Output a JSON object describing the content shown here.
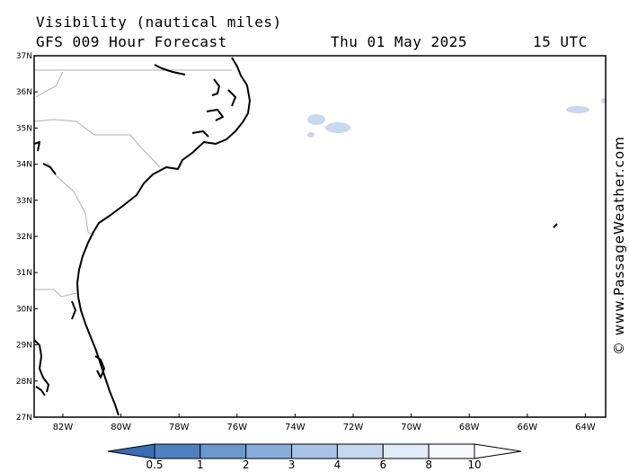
{
  "header": {
    "title": "Visibility (nautical miles)",
    "subtitle": "GFS 009 Hour Forecast",
    "date": "Thu 01 May 2025",
    "time": "15 UTC"
  },
  "map": {
    "lat_labels": [
      "37N",
      "36N",
      "35N",
      "34N",
      "33N",
      "32N",
      "31N",
      "30N",
      "29N",
      "28N",
      "27N"
    ],
    "lon_labels": [
      "82W",
      "80W",
      "78W",
      "76W",
      "74W",
      "72W",
      "70W",
      "68W",
      "66W",
      "64W"
    ],
    "land_color": "#000000",
    "border_color": "#b0b0b0",
    "low_visibility_color": "#c8d8ee"
  },
  "colorbar": {
    "labels": [
      "0.5",
      "1",
      "2",
      "3",
      "4",
      "6",
      "8",
      "10"
    ],
    "colors": [
      "#3a6db3",
      "#4f80c2",
      "#6b97cf",
      "#89addb",
      "#a8c3e6",
      "#c6d8f0",
      "#e2ecf8",
      "#f6f9fd",
      "#ffffff"
    ]
  },
  "credit": "© www.PassageWeather.com"
}
